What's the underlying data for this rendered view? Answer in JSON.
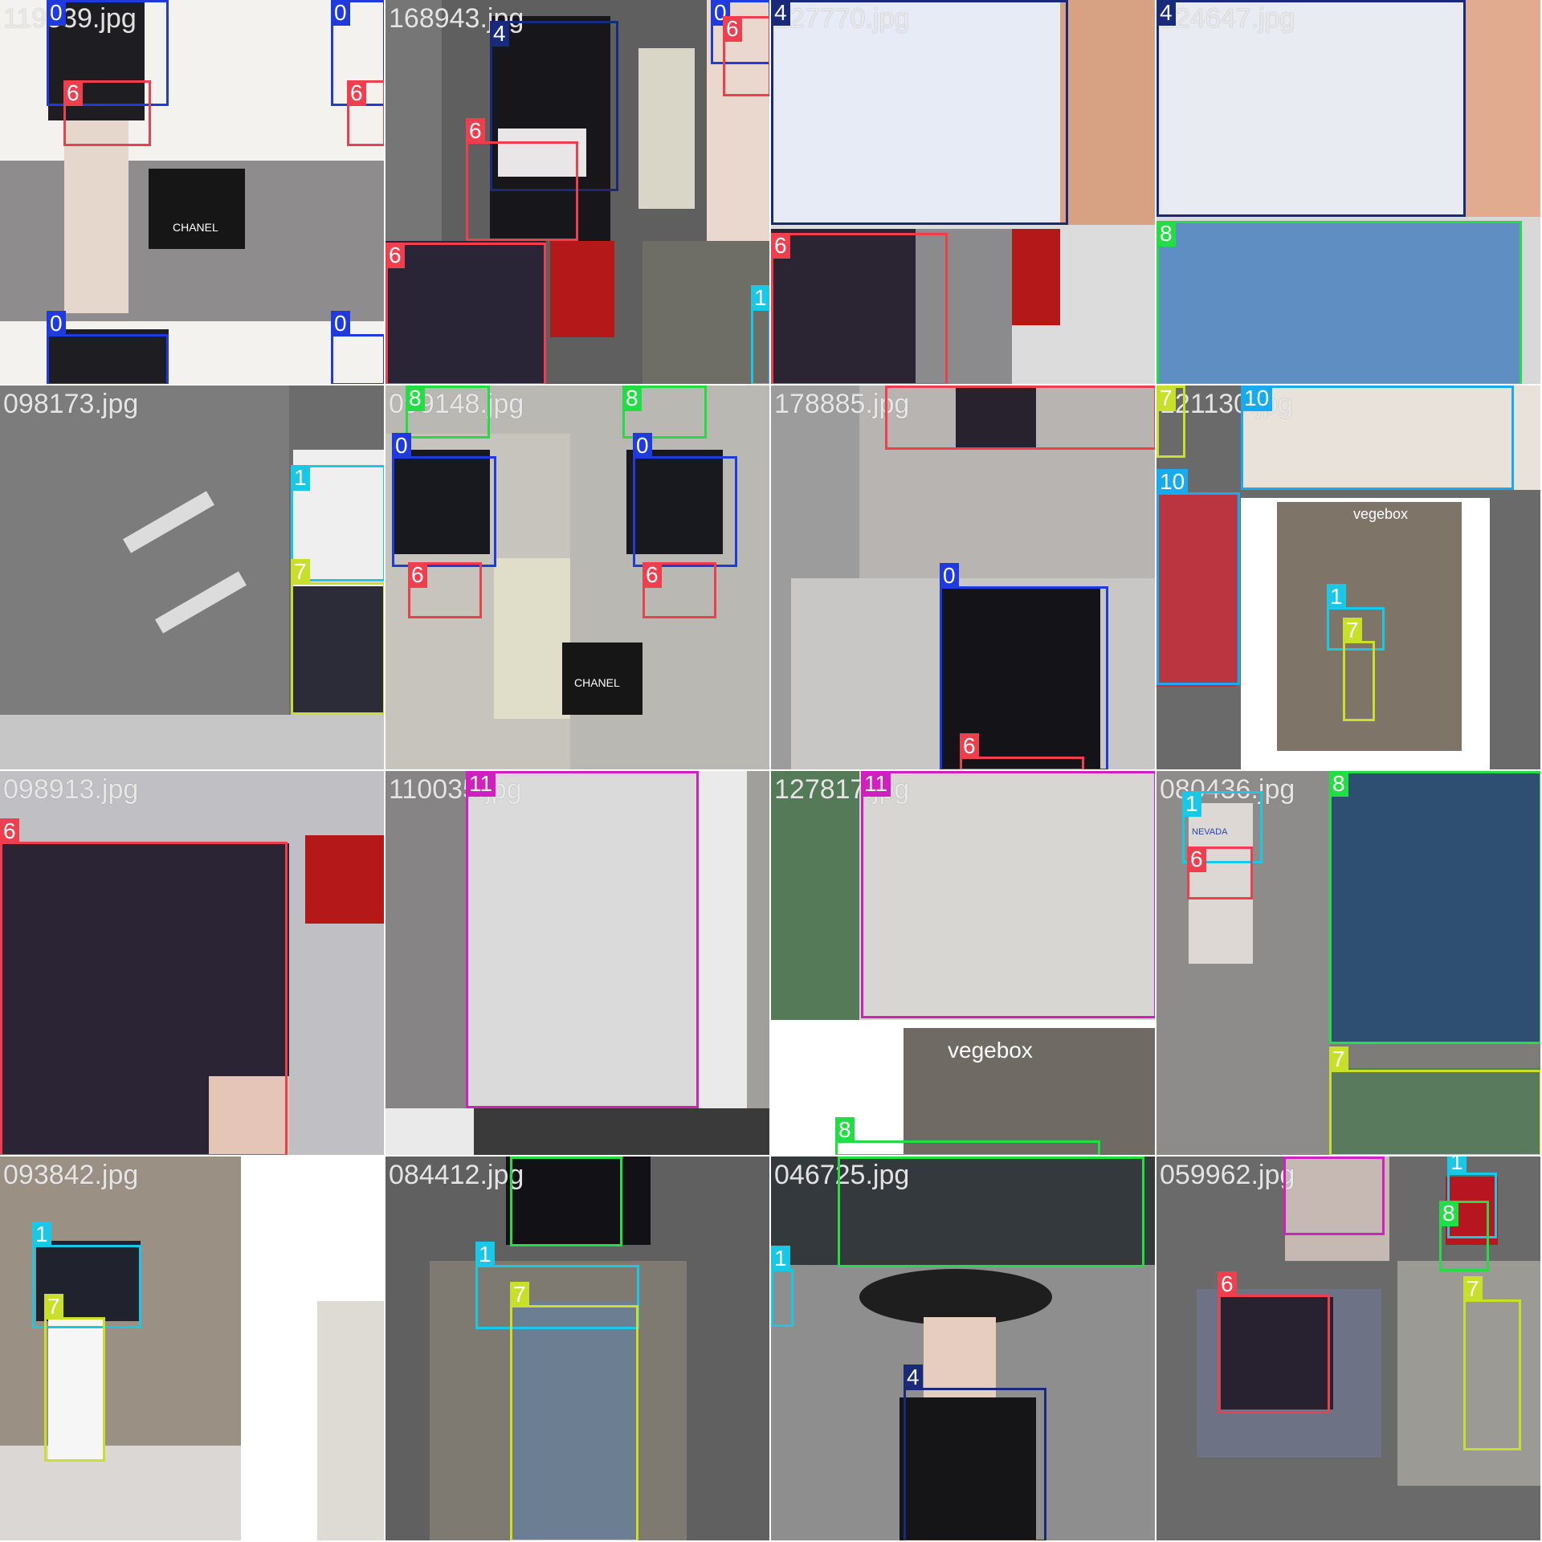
{
  "colors": {
    "class_0": "#1f3adf",
    "class_1": "#19c8e6",
    "class_4": "#1a2a7a",
    "class_6": "#ef3f4f",
    "class_7": "#c8e02a",
    "class_8": "#22dd44",
    "class_10": "#18aaef",
    "class_11": "#d21fbf"
  },
  "tiles": [
    {
      "name": "119539.jpg",
      "name_shown": "119539.jpg",
      "boxes": [
        {
          "cls": "0"
        },
        {
          "cls": "6"
        },
        {
          "cls": "0"
        },
        {
          "cls": "6"
        },
        {
          "cls": "0"
        },
        {
          "cls": "0"
        }
      ]
    },
    {
      "name": "168943.jpg",
      "name_shown": "168943.jpg",
      "boxes": [
        {
          "cls": "4"
        },
        {
          "cls": "6"
        },
        {
          "cls": "0"
        },
        {
          "cls": "6"
        },
        {
          "cls": "6"
        },
        {
          "cls": "1"
        }
      ]
    },
    {
      "name": "127770.jpg",
      "name_shown": "127770.jpg",
      "boxes": [
        {
          "cls": "4"
        },
        {
          "cls": "6"
        }
      ]
    },
    {
      "name": "124647.jpg",
      "name_shown": "124647.jpg",
      "boxes": [
        {
          "cls": "4"
        },
        {
          "cls": "8"
        }
      ]
    },
    {
      "name": "098173.jpg",
      "name_shown": "098173.jpg",
      "boxes": [
        {
          "cls": "1"
        },
        {
          "cls": "7"
        }
      ]
    },
    {
      "name": "099148.jpg",
      "name_shown": "099148.jpg",
      "boxes": [
        {
          "cls": "8"
        },
        {
          "cls": "8"
        },
        {
          "cls": "0"
        },
        {
          "cls": "6"
        },
        {
          "cls": "0"
        },
        {
          "cls": "6"
        }
      ]
    },
    {
      "name": "178885.jpg",
      "name_shown": "178885.jpg",
      "boxes": [
        {
          "cls": "6"
        },
        {
          "cls": "0"
        },
        {
          "cls": "6"
        }
      ]
    },
    {
      "name": "121130.jpg",
      "name_shown": "121130.jpg",
      "boxes": [
        {
          "cls": "7"
        },
        {
          "cls": "10"
        },
        {
          "cls": "10"
        },
        {
          "cls": "1"
        },
        {
          "cls": "7"
        }
      ]
    },
    {
      "name": "098913.jpg",
      "name_shown": "098913.jpg",
      "boxes": [
        {
          "cls": "6"
        }
      ]
    },
    {
      "name": "110035.jpg",
      "name_shown": "110035.jpg",
      "boxes": [
        {
          "cls": "11"
        }
      ]
    },
    {
      "name": "127817.jpg",
      "name_shown": "127817.jpg",
      "boxes": [
        {
          "cls": "11"
        },
        {
          "cls": "8"
        }
      ]
    },
    {
      "name": "080436.jpg",
      "name_shown": "080436.jpg",
      "boxes": [
        {
          "cls": "1"
        },
        {
          "cls": "6"
        },
        {
          "cls": "8"
        },
        {
          "cls": "7"
        }
      ]
    },
    {
      "name": "093842.jpg",
      "name_shown": "093842.jpg",
      "boxes": [
        {
          "cls": "1"
        },
        {
          "cls": "7"
        }
      ]
    },
    {
      "name": "084412.jpg",
      "name_shown": "084412.jpg",
      "boxes": [
        {
          "cls": "8"
        },
        {
          "cls": "1"
        },
        {
          "cls": "7"
        }
      ]
    },
    {
      "name": "046725.jpg",
      "name_shown": "046725.jpg",
      "boxes": [
        {
          "cls": "8"
        },
        {
          "cls": "1"
        },
        {
          "cls": "4"
        }
      ]
    },
    {
      "name": "059962.jpg",
      "name_shown": "059962.jpg",
      "boxes": [
        {
          "cls": "11"
        },
        {
          "cls": "1"
        },
        {
          "cls": "8"
        },
        {
          "cls": "6"
        },
        {
          "cls": "7"
        }
      ]
    }
  ],
  "signage": {
    "chanel_1": "CHANEL",
    "chanel_2": "CHANEL",
    "vegebox_1": "vegebox",
    "vegebox_2": "vegebox",
    "nevada": "NEVADA"
  }
}
